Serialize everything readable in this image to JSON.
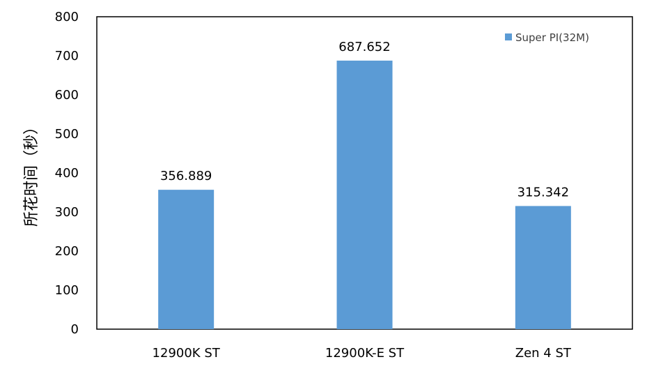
{
  "chart_data": {
    "type": "bar",
    "categories": [
      "12900K ST",
      "12900K-E ST",
      "Zen 4 ST"
    ],
    "series": [
      {
        "name": "Super PI(32M)",
        "values": [
          356.889,
          687.652,
          315.342
        ],
        "value_labels": [
          "356.889",
          "687.652",
          "315.342"
        ],
        "color": "#5B9BD5"
      }
    ],
    "title": "",
    "xlabel": "",
    "ylabel": "所花时间（秒）",
    "ylim": [
      0,
      800
    ],
    "yticks": [
      0,
      100,
      200,
      300,
      400,
      500,
      600,
      700,
      800
    ],
    "grid": false,
    "legend_position": "top-right"
  }
}
